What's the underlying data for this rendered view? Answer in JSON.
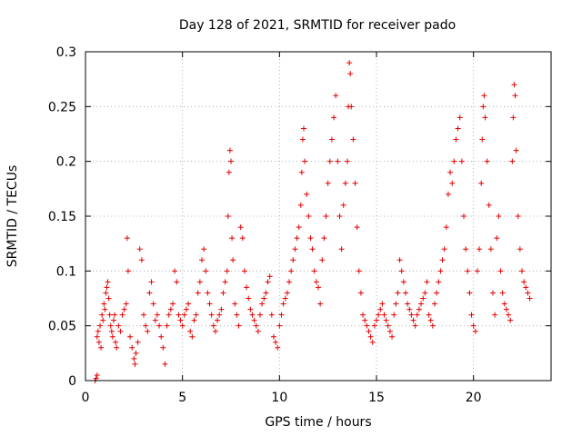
{
  "chart_data": {
    "type": "scatter",
    "title": "Day 128 of 2021, SRMTID for receiver pado",
    "xlabel": "GPS time / hours",
    "ylabel": "SRMTID / TECUs",
    "xlim": [
      0,
      24
    ],
    "ylim": [
      0,
      0.3
    ],
    "xticks": [
      0,
      5,
      10,
      15,
      20
    ],
    "xtick_labels": [
      "0",
      "5",
      "10",
      "15",
      "20"
    ],
    "yticks": [
      0,
      0.05,
      0.1,
      0.15,
      0.2,
      0.25,
      0.3
    ],
    "ytick_labels": [
      "0",
      "0.05",
      "0.1",
      "0.15",
      "0.2",
      "0.25",
      "0.3"
    ],
    "grid": true,
    "marker": "+",
    "color": "#e60000",
    "series": [
      {
        "name": "SRMTID",
        "points": [
          [
            0.5,
            0.0
          ],
          [
            0.55,
            0.002
          ],
          [
            0.6,
            0.005
          ],
          [
            0.6,
            0.04
          ],
          [
            0.65,
            0.045
          ],
          [
            0.7,
            0.035
          ],
          [
            0.75,
            0.05
          ],
          [
            0.8,
            0.03
          ],
          [
            0.85,
            0.06
          ],
          [
            0.9,
            0.055
          ],
          [
            0.95,
            0.07
          ],
          [
            1.0,
            0.065
          ],
          [
            1.05,
            0.08
          ],
          [
            1.1,
            0.085
          ],
          [
            1.15,
            0.09
          ],
          [
            1.2,
            0.075
          ],
          [
            1.25,
            0.06
          ],
          [
            1.3,
            0.05
          ],
          [
            1.35,
            0.045
          ],
          [
            1.4,
            0.04
          ],
          [
            1.45,
            0.055
          ],
          [
            1.5,
            0.06
          ],
          [
            1.55,
            0.035
          ],
          [
            1.6,
            0.03
          ],
          [
            1.7,
            0.05
          ],
          [
            1.8,
            0.045
          ],
          [
            1.9,
            0.06
          ],
          [
            2.0,
            0.065
          ],
          [
            2.1,
            0.07
          ],
          [
            2.15,
            0.13
          ],
          [
            2.2,
            0.1
          ],
          [
            2.3,
            0.04
          ],
          [
            2.4,
            0.03
          ],
          [
            2.5,
            0.02
          ],
          [
            2.55,
            0.015
          ],
          [
            2.6,
            0.025
          ],
          [
            2.7,
            0.035
          ],
          [
            2.8,
            0.12
          ],
          [
            2.9,
            0.11
          ],
          [
            3.0,
            0.06
          ],
          [
            3.1,
            0.05
          ],
          [
            3.2,
            0.045
          ],
          [
            3.3,
            0.08
          ],
          [
            3.4,
            0.09
          ],
          [
            3.5,
            0.07
          ],
          [
            3.6,
            0.055
          ],
          [
            3.7,
            0.06
          ],
          [
            3.8,
            0.05
          ],
          [
            3.9,
            0.04
          ],
          [
            4.0,
            0.03
          ],
          [
            4.1,
            0.015
          ],
          [
            4.2,
            0.05
          ],
          [
            4.3,
            0.06
          ],
          [
            4.4,
            0.065
          ],
          [
            4.5,
            0.07
          ],
          [
            4.6,
            0.1
          ],
          [
            4.7,
            0.09
          ],
          [
            4.8,
            0.06
          ],
          [
            4.9,
            0.055
          ],
          [
            5.0,
            0.05
          ],
          [
            5.1,
            0.06
          ],
          [
            5.2,
            0.065
          ],
          [
            5.3,
            0.07
          ],
          [
            5.4,
            0.045
          ],
          [
            5.5,
            0.04
          ],
          [
            5.6,
            0.055
          ],
          [
            5.7,
            0.06
          ],
          [
            5.8,
            0.08
          ],
          [
            5.9,
            0.09
          ],
          [
            6.0,
            0.11
          ],
          [
            6.1,
            0.12
          ],
          [
            6.2,
            0.1
          ],
          [
            6.3,
            0.08
          ],
          [
            6.4,
            0.07
          ],
          [
            6.5,
            0.06
          ],
          [
            6.6,
            0.05
          ],
          [
            6.7,
            0.045
          ],
          [
            6.8,
            0.055
          ],
          [
            6.9,
            0.06
          ],
          [
            7.0,
            0.065
          ],
          [
            7.1,
            0.08
          ],
          [
            7.2,
            0.09
          ],
          [
            7.3,
            0.1
          ],
          [
            7.35,
            0.15
          ],
          [
            7.4,
            0.19
          ],
          [
            7.45,
            0.21
          ],
          [
            7.5,
            0.2
          ],
          [
            7.55,
            0.13
          ],
          [
            7.6,
            0.11
          ],
          [
            7.7,
            0.07
          ],
          [
            7.8,
            0.06
          ],
          [
            7.9,
            0.05
          ],
          [
            8.0,
            0.14
          ],
          [
            8.1,
            0.13
          ],
          [
            8.2,
            0.1
          ],
          [
            8.3,
            0.085
          ],
          [
            8.4,
            0.075
          ],
          [
            8.5,
            0.065
          ],
          [
            8.6,
            0.06
          ],
          [
            8.7,
            0.055
          ],
          [
            8.8,
            0.05
          ],
          [
            8.9,
            0.045
          ],
          [
            9.0,
            0.06
          ],
          [
            9.1,
            0.07
          ],
          [
            9.2,
            0.075
          ],
          [
            9.3,
            0.08
          ],
          [
            9.4,
            0.09
          ],
          [
            9.5,
            0.095
          ],
          [
            9.6,
            0.06
          ],
          [
            9.7,
            0.04
          ],
          [
            9.8,
            0.035
          ],
          [
            9.9,
            0.03
          ],
          [
            10.0,
            0.05
          ],
          [
            10.1,
            0.06
          ],
          [
            10.2,
            0.07
          ],
          [
            10.3,
            0.075
          ],
          [
            10.4,
            0.08
          ],
          [
            10.5,
            0.09
          ],
          [
            10.6,
            0.1
          ],
          [
            10.7,
            0.11
          ],
          [
            10.8,
            0.12
          ],
          [
            10.9,
            0.13
          ],
          [
            11.0,
            0.14
          ],
          [
            11.1,
            0.16
          ],
          [
            11.15,
            0.19
          ],
          [
            11.2,
            0.22
          ],
          [
            11.25,
            0.23
          ],
          [
            11.3,
            0.2
          ],
          [
            11.4,
            0.17
          ],
          [
            11.5,
            0.15
          ],
          [
            11.6,
            0.13
          ],
          [
            11.7,
            0.12
          ],
          [
            11.8,
            0.1
          ],
          [
            11.9,
            0.09
          ],
          [
            12.0,
            0.085
          ],
          [
            12.1,
            0.07
          ],
          [
            12.2,
            0.11
          ],
          [
            12.3,
            0.13
          ],
          [
            12.4,
            0.15
          ],
          [
            12.5,
            0.18
          ],
          [
            12.6,
            0.2
          ],
          [
            12.7,
            0.22
          ],
          [
            12.8,
            0.24
          ],
          [
            12.9,
            0.26
          ],
          [
            13.0,
            0.2
          ],
          [
            13.1,
            0.15
          ],
          [
            13.2,
            0.12
          ],
          [
            13.3,
            0.16
          ],
          [
            13.4,
            0.18
          ],
          [
            13.5,
            0.2
          ],
          [
            13.55,
            0.25
          ],
          [
            13.6,
            0.29
          ],
          [
            13.65,
            0.28
          ],
          [
            13.7,
            0.25
          ],
          [
            13.8,
            0.22
          ],
          [
            13.9,
            0.18
          ],
          [
            14.0,
            0.14
          ],
          [
            14.1,
            0.1
          ],
          [
            14.2,
            0.08
          ],
          [
            14.3,
            0.06
          ],
          [
            14.4,
            0.055
          ],
          [
            14.5,
            0.05
          ],
          [
            14.6,
            0.045
          ],
          [
            14.7,
            0.04
          ],
          [
            14.8,
            0.035
          ],
          [
            14.9,
            0.05
          ],
          [
            15.0,
            0.055
          ],
          [
            15.1,
            0.06
          ],
          [
            15.2,
            0.065
          ],
          [
            15.3,
            0.07
          ],
          [
            15.4,
            0.06
          ],
          [
            15.5,
            0.055
          ],
          [
            15.6,
            0.05
          ],
          [
            15.7,
            0.045
          ],
          [
            15.8,
            0.04
          ],
          [
            15.9,
            0.06
          ],
          [
            16.0,
            0.07
          ],
          [
            16.1,
            0.08
          ],
          [
            16.2,
            0.11
          ],
          [
            16.3,
            0.1
          ],
          [
            16.4,
            0.09
          ],
          [
            16.5,
            0.08
          ],
          [
            16.6,
            0.07
          ],
          [
            16.7,
            0.065
          ],
          [
            16.8,
            0.06
          ],
          [
            16.9,
            0.055
          ],
          [
            17.0,
            0.05
          ],
          [
            17.1,
            0.06
          ],
          [
            17.2,
            0.065
          ],
          [
            17.3,
            0.07
          ],
          [
            17.4,
            0.075
          ],
          [
            17.5,
            0.08
          ],
          [
            17.6,
            0.09
          ],
          [
            17.7,
            0.06
          ],
          [
            17.8,
            0.055
          ],
          [
            17.9,
            0.05
          ],
          [
            18.0,
            0.07
          ],
          [
            18.1,
            0.08
          ],
          [
            18.2,
            0.09
          ],
          [
            18.3,
            0.1
          ],
          [
            18.4,
            0.11
          ],
          [
            18.5,
            0.12
          ],
          [
            18.6,
            0.14
          ],
          [
            18.7,
            0.17
          ],
          [
            18.8,
            0.19
          ],
          [
            18.9,
            0.18
          ],
          [
            19.0,
            0.2
          ],
          [
            19.1,
            0.22
          ],
          [
            19.2,
            0.23
          ],
          [
            19.3,
            0.24
          ],
          [
            19.4,
            0.2
          ],
          [
            19.5,
            0.15
          ],
          [
            19.6,
            0.12
          ],
          [
            19.7,
            0.1
          ],
          [
            19.8,
            0.08
          ],
          [
            19.9,
            0.06
          ],
          [
            20.0,
            0.05
          ],
          [
            20.1,
            0.045
          ],
          [
            20.2,
            0.1
          ],
          [
            20.3,
            0.12
          ],
          [
            20.4,
            0.18
          ],
          [
            20.45,
            0.22
          ],
          [
            20.5,
            0.25
          ],
          [
            20.55,
            0.26
          ],
          [
            20.6,
            0.24
          ],
          [
            20.7,
            0.2
          ],
          [
            20.8,
            0.16
          ],
          [
            20.9,
            0.12
          ],
          [
            21.0,
            0.08
          ],
          [
            21.1,
            0.06
          ],
          [
            21.2,
            0.13
          ],
          [
            21.3,
            0.15
          ],
          [
            21.4,
            0.1
          ],
          [
            21.5,
            0.08
          ],
          [
            21.6,
            0.07
          ],
          [
            21.7,
            0.065
          ],
          [
            21.8,
            0.06
          ],
          [
            21.9,
            0.055
          ],
          [
            22.0,
            0.2
          ],
          [
            22.05,
            0.24
          ],
          [
            22.1,
            0.27
          ],
          [
            22.15,
            0.26
          ],
          [
            22.2,
            0.21
          ],
          [
            22.3,
            0.15
          ],
          [
            22.4,
            0.12
          ],
          [
            22.5,
            0.1
          ],
          [
            22.6,
            0.09
          ],
          [
            22.7,
            0.085
          ],
          [
            22.8,
            0.08
          ],
          [
            22.9,
            0.075
          ]
        ]
      }
    ]
  }
}
